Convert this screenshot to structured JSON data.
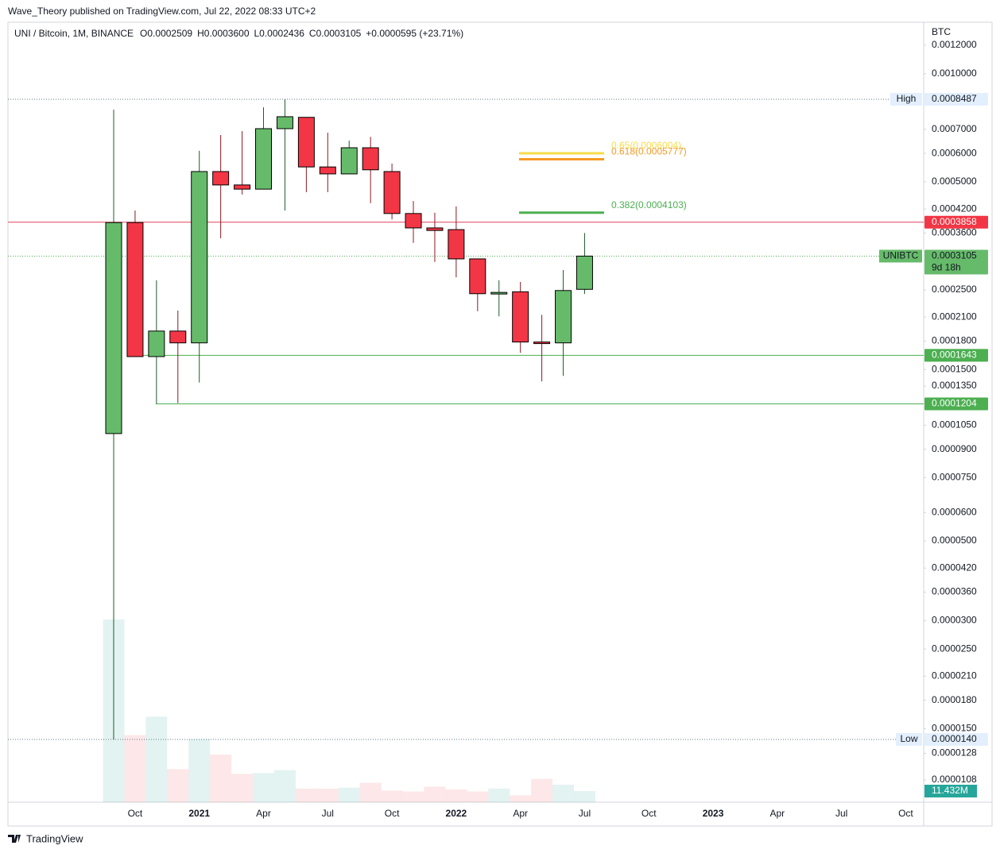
{
  "publisher": "Wave_Theory published on TradingView.com, Jul 22, 2022 08:33 UTC+2",
  "brand": "TradingView",
  "chart_data": {
    "type": "candlestick",
    "title": "UNI / Bitcoin, 1M, BINANCE",
    "legend_ohlc": [
      "O0.0002509",
      "H0.0003600",
      "L0.0002436",
      "C0.0003105"
    ],
    "legend_change": "+0.0000595 (+23.71%)",
    "currency": "BTC",
    "log_scale": true,
    "up_color": "#66bb6a",
    "down_color": "#f23645",
    "categories": [
      null,
      "Oct",
      null,
      null,
      "2021",
      null,
      null,
      "Apr",
      null,
      null,
      "Jul",
      null,
      null,
      "Oct",
      null,
      null,
      "2022",
      null,
      null,
      "Apr",
      null,
      null,
      "Jul",
      null,
      null,
      "Oct",
      null,
      null,
      "2023",
      null,
      null,
      "Apr",
      null,
      null,
      "Jul",
      null,
      null,
      "Oct"
    ],
    "open": [
      9.95e-05,
      0.000385,
      0.000163,
      0.000192,
      0.000178,
      0.000534,
      0.00049,
      0.000477,
      0.000703,
      0.000756,
      0.00055,
      0.000526,
      0.000622,
      0.000534,
      0.000408,
      0.000372,
      0.000368,
      0.000305,
      0.000244,
      0.000247,
      0.000179,
      0.000178,
      0.0002509,
      null,
      null,
      null,
      null,
      null,
      null,
      null,
      null,
      null,
      null,
      null,
      null,
      null,
      null,
      null
    ],
    "high": [
      0.000794,
      0.000416,
      0.000266,
      0.000219,
      0.00061,
      0.000675,
      0.000692,
      0.000806,
      0.0008487,
      0.000756,
      0.000685,
      0.000651,
      0.000667,
      0.000562,
      0.000442,
      0.00041,
      0.000427,
      0.000305,
      0.000266,
      0.000263,
      0.000213,
      0.000284,
      0.00036,
      null,
      null,
      null,
      null,
      null,
      null,
      null,
      null,
      null,
      null,
      null,
      null,
      null,
      null,
      null
    ],
    "low": [
      1.4e-05,
      0.000163,
      0.0001204,
      0.000121,
      0.000138,
      0.000348,
      0.000461,
      0.000477,
      0.000416,
      0.000468,
      0.000468,
      0.000526,
      0.000436,
      0.000393,
      0.000338,
      0.000299,
      0.000271,
      0.000218,
      0.000211,
      0.000167,
      0.000139,
      0.000144,
      0.0002436,
      null,
      null,
      null,
      null,
      null,
      null,
      null,
      null,
      null,
      null,
      null,
      null,
      null,
      null,
      null
    ],
    "close": [
      0.000385,
      0.000163,
      0.000192,
      0.000178,
      0.000534,
      0.00049,
      0.000477,
      0.000703,
      0.000759,
      0.00055,
      0.000526,
      0.000622,
      0.00054,
      0.000408,
      0.000372,
      0.000366,
      0.000305,
      0.000244,
      0.000246,
      0.000179,
      0.000178,
      0.000249,
      0.0003105,
      null,
      null,
      null,
      null,
      null,
      null,
      null,
      null,
      null,
      null,
      null,
      null,
      null,
      null,
      null
    ],
    "volume": [
      188,
      69,
      88,
      34,
      65,
      49,
      29,
      30,
      33,
      14,
      14,
      15,
      20,
      12,
      11,
      16,
      13,
      11,
      14,
      7,
      24,
      18,
      11.432,
      null,
      null,
      null,
      null,
      null,
      null,
      null,
      null,
      null,
      null,
      null,
      null,
      null,
      null,
      null
    ],
    "volume_lim": [
      0,
      250
    ],
    "volume_label": "11.432M",
    "ylim": [
      9.36e-06,
      0.001391
    ],
    "yticks": [
      {
        "value": 0.0012,
        "label": "0.0012000"
      },
      {
        "value": 0.001,
        "label": "0.0010000"
      },
      {
        "value": 0.0007,
        "label": "0.0007000"
      },
      {
        "value": 0.0006,
        "label": "0.0006000"
      },
      {
        "value": 0.0005,
        "label": "0.0005000"
      },
      {
        "value": 0.00042,
        "label": "0.0004200"
      },
      {
        "value": 0.00036,
        "label": "0.0003600"
      },
      {
        "value": 0.00025,
        "label": "0.0002500"
      },
      {
        "value": 0.00021,
        "label": "0.0002100"
      },
      {
        "value": 0.00018,
        "label": "0.0001800"
      },
      {
        "value": 0.00015,
        "label": "0.0001500"
      },
      {
        "value": 0.000135,
        "label": "0.0001350"
      },
      {
        "value": 0.000105,
        "label": "0.0001050"
      },
      {
        "value": 9e-05,
        "label": "0.0000900"
      },
      {
        "value": 7.5e-05,
        "label": "0.0000750"
      },
      {
        "value": 6e-05,
        "label": "0.0000600"
      },
      {
        "value": 5e-05,
        "label": "0.0000500"
      },
      {
        "value": 4.2e-05,
        "label": "0.0000420"
      },
      {
        "value": 3.6e-05,
        "label": "0.0000360"
      },
      {
        "value": 3e-05,
        "label": "0.0000300"
      },
      {
        "value": 2.5e-05,
        "label": "0.0000250"
      },
      {
        "value": 2.1e-05,
        "label": "0.0000210"
      },
      {
        "value": 1.8e-05,
        "label": "0.0000180"
      },
      {
        "value": 1.5e-05,
        "label": "0.0000150"
      },
      {
        "value": 1.28e-05,
        "label": "0.0000128"
      },
      {
        "value": 1.08e-05,
        "label": "0.0000108"
      }
    ],
    "levels": [
      {
        "name": "High",
        "value": 0.0008487,
        "label": "0.0008487",
        "line_color": "#607d8b",
        "dotted": true,
        "label_bg": "#e3effd",
        "label_color": "#131722"
      },
      {
        "value": 0.0003858,
        "label": "0.0003858",
        "line_color": "#e0405a",
        "dotted": false,
        "label_bg": "#f23645",
        "label_color": "#ffffff"
      },
      {
        "name": "UNIBTC",
        "value": 0.0003105,
        "label": "0.0003105",
        "sub": "9d 18h",
        "line_color": "#4caf50",
        "dotted": true,
        "label_bg": "#66bb6a",
        "label_color": "#131722"
      },
      {
        "value": 0.0001643,
        "label": "0.0001643",
        "line_color": "#4caf50",
        "dotted": false,
        "label_bg": "#4caf50",
        "label_color": "#ffffff"
      },
      {
        "value": 0.0001204,
        "label": "0.0001204",
        "line_color": "#4caf50",
        "dotted": false,
        "label_bg": "#4caf50",
        "label_color": "#ffffff"
      },
      {
        "name": "Low",
        "value": 1.4e-05,
        "label": "0.0000140",
        "line_color": "#607d8b",
        "dotted": true,
        "label_bg": "#e3effd",
        "label_color": "#131722"
      }
    ],
    "fib": [
      {
        "value": 0.0006004,
        "label": "0.65(0.0006004)",
        "color": "#f7dc4a"
      },
      {
        "value": 0.0005777,
        "label": "0.618(0.0005777)",
        "color": "#f59a23"
      },
      {
        "value": 0.0004103,
        "label": "0.382(0.0004103)",
        "color": "#4caf50"
      }
    ]
  }
}
